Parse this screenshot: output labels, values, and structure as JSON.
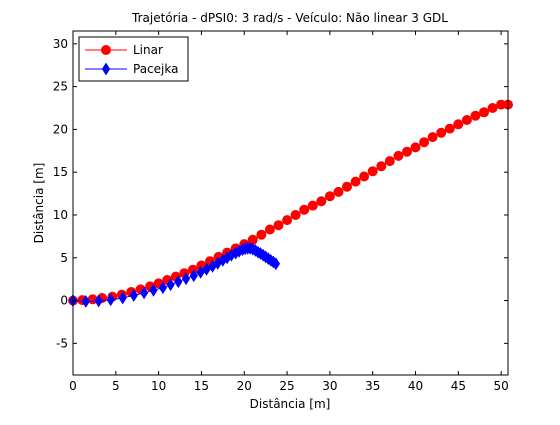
{
  "chart_data": {
    "type": "line",
    "title": "Trajetória - dPSI0: 3 rad/s - Veículo: Não linear 3 GDL",
    "xlabel": "Distância [m]",
    "ylabel": "Distância [m]",
    "xlim": [
      0,
      50.8
    ],
    "ylim": [
      -8.7,
      31.5
    ],
    "xticks": [
      0,
      5,
      10,
      15,
      20,
      25,
      30,
      35,
      40,
      45,
      50
    ],
    "yticks": [
      -5,
      0,
      5,
      10,
      15,
      20,
      25,
      30
    ],
    "grid": false,
    "legend_position": "top-left",
    "series": [
      {
        "name": "Linar",
        "color": "#ff0000",
        "marker": "circle",
        "x": [
          0,
          1.1,
          2.3,
          3.4,
          4.6,
          5.7,
          6.8,
          7.9,
          9.0,
          10.0,
          11.0,
          12.0,
          13.0,
          14.0,
          15.0,
          16.0,
          17.0,
          18.0,
          19.0,
          20.0,
          21.0,
          22.0,
          23.0,
          24.0,
          25.0,
          26.0,
          27.0,
          28.0,
          29.0,
          30.0,
          31.0,
          32.0,
          33.0,
          34.0,
          35.0,
          36.0,
          37.0,
          38.0,
          39.0,
          40.0,
          41.0,
          42.0,
          43.0,
          44.0,
          45.0,
          46.0,
          47.0,
          48.0,
          49.0,
          50.0,
          50.8
        ],
        "y": [
          0.0,
          0.05,
          0.15,
          0.3,
          0.45,
          0.7,
          1.0,
          1.3,
          1.65,
          2.0,
          2.4,
          2.8,
          3.2,
          3.6,
          4.1,
          4.6,
          5.1,
          5.6,
          6.1,
          6.6,
          7.1,
          7.7,
          8.3,
          8.8,
          9.4,
          10.0,
          10.6,
          11.1,
          11.6,
          12.2,
          12.7,
          13.3,
          13.9,
          14.5,
          15.1,
          15.7,
          16.3,
          16.9,
          17.4,
          17.9,
          18.5,
          19.1,
          19.6,
          20.1,
          20.6,
          21.1,
          21.6,
          22.0,
          22.5,
          22.9,
          22.9
        ]
      },
      {
        "name": "Pacejka",
        "color": "#0000ff",
        "marker": "diamond",
        "x": [
          0,
          1.5,
          3.0,
          4.4,
          5.8,
          7.1,
          8.3,
          9.4,
          10.5,
          11.4,
          12.3,
          13.2,
          14.1,
          14.9,
          15.6,
          16.3,
          16.9,
          17.5,
          18.0,
          18.5,
          19.0,
          19.4,
          19.8,
          20.1,
          20.4,
          20.7,
          21.0,
          21.3,
          21.6,
          21.9,
          22.2,
          22.5,
          22.8,
          23.1,
          23.4,
          23.7
        ],
        "y": [
          0.0,
          -0.1,
          -0.05,
          0.1,
          0.3,
          0.6,
          0.9,
          1.2,
          1.5,
          1.85,
          2.2,
          2.55,
          2.9,
          3.3,
          3.65,
          4.0,
          4.35,
          4.7,
          5.0,
          5.3,
          5.55,
          5.75,
          5.95,
          6.05,
          6.1,
          6.1,
          6.0,
          5.85,
          5.65,
          5.5,
          5.3,
          5.1,
          4.9,
          4.7,
          4.5,
          4.3
        ]
      }
    ]
  }
}
